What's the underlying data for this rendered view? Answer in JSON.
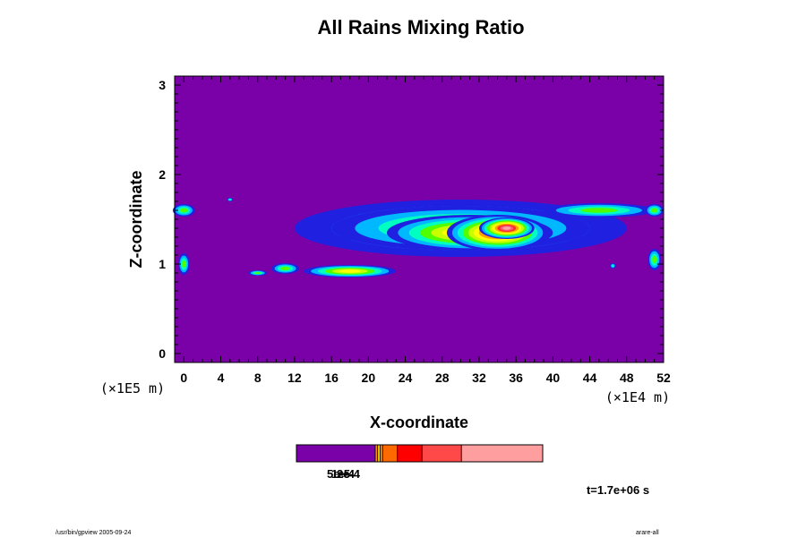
{
  "chart_data": {
    "type": "heatmap",
    "title": "All Rains Mixing Ratio",
    "xlabel": "X-coordinate",
    "ylabel": "Z-coordinate",
    "x_unit": "(×1E4 m)",
    "y_unit": "(×1E5 m)",
    "xlim": [
      -1,
      52
    ],
    "ylim": [
      -0.1,
      3.1
    ],
    "x_ticks": [
      "0",
      "4",
      "8",
      "12",
      "16",
      "20",
      "24",
      "28",
      "32",
      "36",
      "40",
      "44",
      "48",
      "52"
    ],
    "y_ticks": [
      "0",
      "1",
      "2",
      "3"
    ],
    "background_color": "#7a00a8",
    "regions": [
      {
        "x": 0,
        "z": 1.6,
        "rx": 1.2,
        "rz": 0.07,
        "level": 4
      },
      {
        "x": 0,
        "z": 1.0,
        "rx": 0.6,
        "rz": 0.12,
        "level": 4
      },
      {
        "x": 5,
        "z": 1.72,
        "rx": 0.3,
        "rz": 0.02,
        "level": 3
      },
      {
        "x": 8,
        "z": 0.9,
        "rx": 1.0,
        "rz": 0.03,
        "level": 4
      },
      {
        "x": 11,
        "z": 0.95,
        "rx": 1.5,
        "rz": 0.06,
        "level": 4
      },
      {
        "x": 18,
        "z": 0.92,
        "rx": 5.0,
        "rz": 0.07,
        "level": 6
      },
      {
        "x": 30,
        "z": 1.4,
        "rx": 18.0,
        "rz": 0.32,
        "level": 4
      },
      {
        "x": 30,
        "z": 1.4,
        "rx": 14.0,
        "rz": 0.25,
        "level": 5
      },
      {
        "x": 31,
        "z": 1.35,
        "rx": 9.0,
        "rz": 0.2,
        "level": 7
      },
      {
        "x": 34,
        "z": 1.35,
        "rx": 5.5,
        "rz": 0.2,
        "level": 9
      },
      {
        "x": 35,
        "z": 1.4,
        "rx": 3.0,
        "rz": 0.12,
        "level": 10
      },
      {
        "x": 45,
        "z": 1.6,
        "rx": 6.0,
        "rz": 0.08,
        "level": 4
      },
      {
        "x": 51,
        "z": 1.6,
        "rx": 1.0,
        "rz": 0.07,
        "level": 4
      },
      {
        "x": 51,
        "z": 1.05,
        "rx": 0.7,
        "rz": 0.12,
        "level": 4
      },
      {
        "x": 46.5,
        "z": 0.98,
        "rx": 0.3,
        "rz": 0.03,
        "level": 3
      }
    ],
    "colorbar": {
      "colors": [
        "#7a00a8",
        "#ff8c00",
        "#ffd000",
        "#ff9000",
        "#ff6a00",
        "#ff0000",
        "#ff4848",
        "#ff9e9e"
      ],
      "fractions": [
        0.16,
        0.005,
        0.005,
        0.005,
        0.03,
        0.05,
        0.08,
        0.165
      ],
      "labels": [
        "5e-5",
        "1e-4",
        "2e-4"
      ]
    },
    "palette": [
      "#7a00a8",
      "#2020e0",
      "#00b8ff",
      "#00ffc0",
      "#50ff00",
      "#c8ff00",
      "#ffff00",
      "#ffa000",
      "#ff2a2a",
      "#ff5a78",
      "#ffa0a8"
    ],
    "time_label": "t=1.7e+06 s"
  },
  "footer": {
    "left": "/usr/bin/gpview 2005-09-24",
    "right": "arare-all"
  }
}
